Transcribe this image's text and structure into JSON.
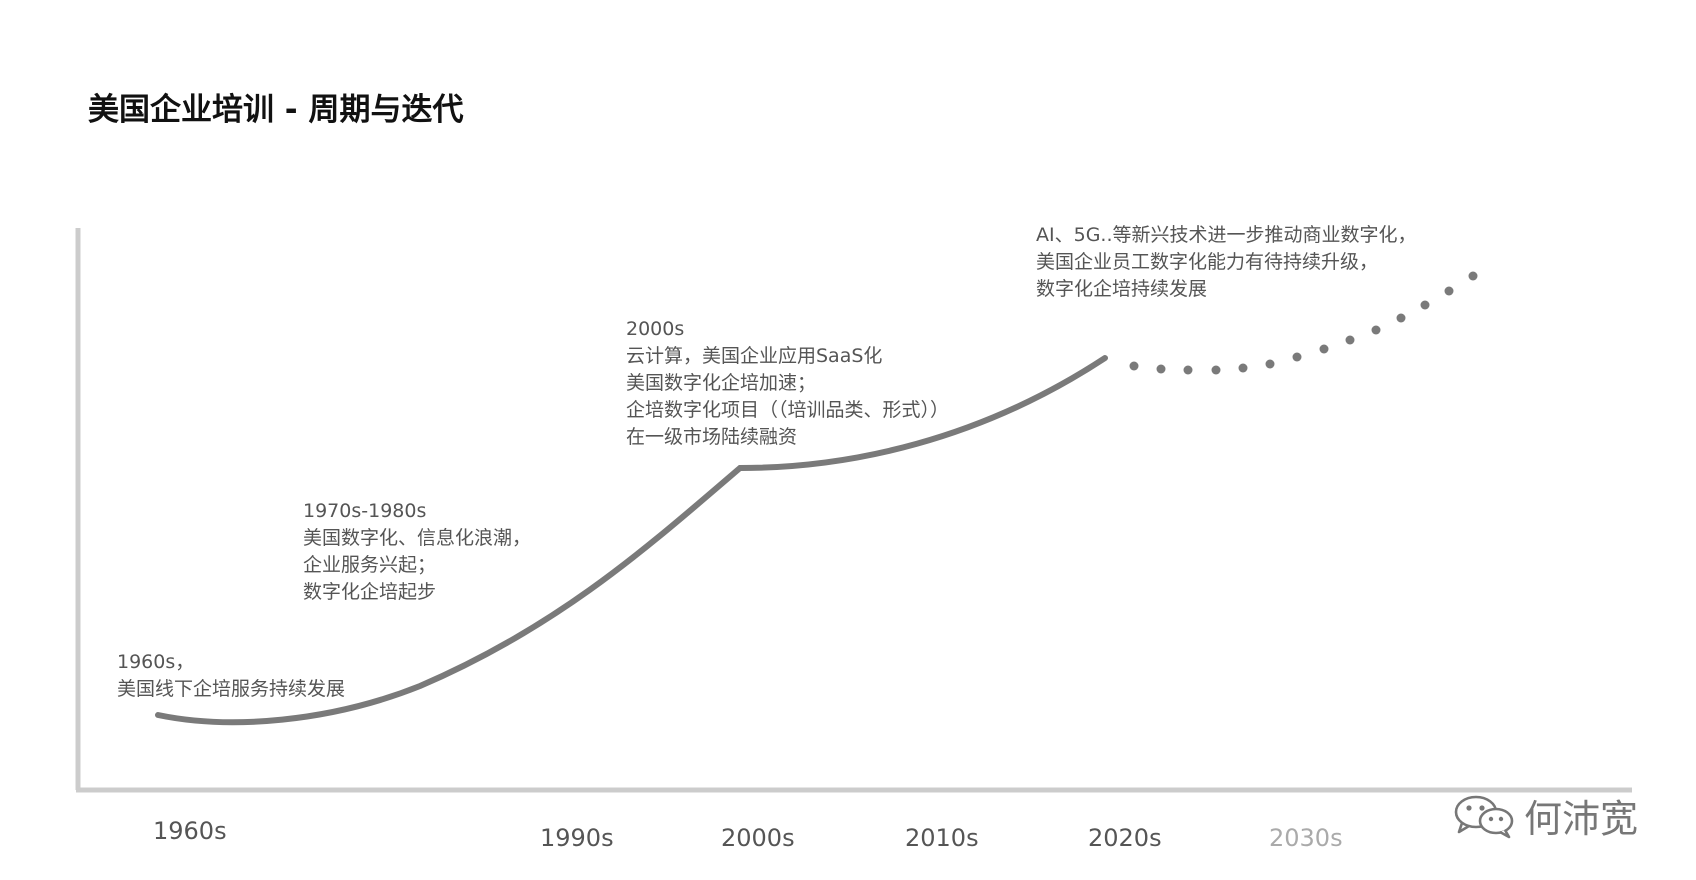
{
  "title": "美国企业培训 - 周期与迭代",
  "annotations": [
    {
      "lines": [
        "1960s，",
        "美国线下企培服务持续发展"
      ]
    },
    {
      "lines": [
        "1970s-1980s",
        "美国数字化、信息化浪潮，",
        "企业服务兴起；",
        "数字化企培起步"
      ]
    },
    {
      "lines": [
        "2000s",
        "云计算，美国企业应用SaaS化",
        "美国数字化企培加速；",
        "企培数字化项目（（培训品类、形式））",
        "在一级市场陆续融资"
      ]
    },
    {
      "lines": [
        "AI、5G..等新兴技术进一步推动商业数字化，",
        "美国企业员工数字化能力有待持续升级，",
        "数字化企培持续发展"
      ]
    }
  ],
  "timeline_labels": [
    "1960s",
    "1990s",
    "2000s",
    "2010s",
    "2020s",
    "2030s"
  ],
  "watermark": {
    "name": "何沛宽",
    "icon": "wechat-icon"
  },
  "colors": {
    "curve": "#7a7a7a",
    "axis": "#cccccc",
    "future_label": "#aaaaaa"
  }
}
